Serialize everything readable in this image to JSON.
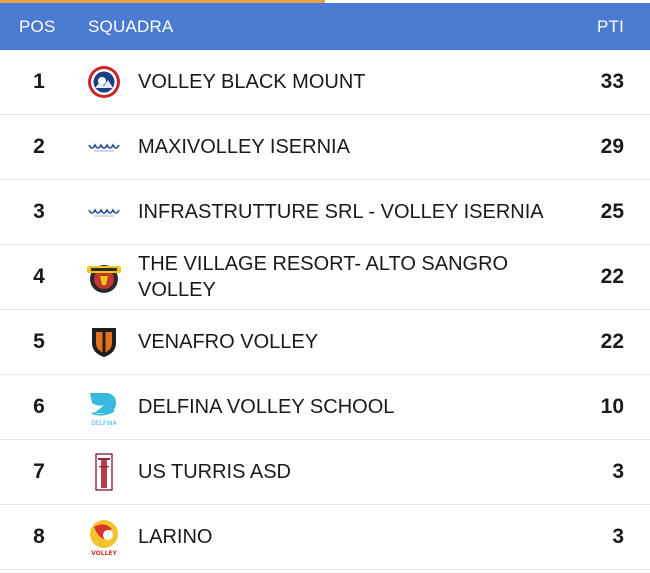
{
  "header": {
    "pos_label": "POS",
    "team_label": "SQUADRA",
    "pts_label": "PTI"
  },
  "standings": [
    {
      "pos": "1",
      "team": "VOLLEY BLACK MOUNT",
      "pts": "33",
      "logo": "volley-black-mount-logo"
    },
    {
      "pos": "2",
      "team": "MAXIVOLLEY ISERNIA",
      "pts": "29",
      "logo": "volley-isernia-logo"
    },
    {
      "pos": "3",
      "team": "INFRASTRUTTURE SRL - VOLLEY ISERNIA",
      "pts": "25",
      "logo": "volley-isernia-logo"
    },
    {
      "pos": "4",
      "team": "THE VILLAGE RESORT- ALTO SANGRO VOLLEY",
      "pts": "22",
      "logo": "alto-sangro-logo"
    },
    {
      "pos": "5",
      "team": "VENAFRO VOLLEY",
      "pts": "22",
      "logo": "venafro-shield-logo"
    },
    {
      "pos": "6",
      "team": "DELFINA VOLLEY SCHOOL",
      "pts": "10",
      "logo": "delfina-logo",
      "logo_text": "DELFINA"
    },
    {
      "pos": "7",
      "team": "US TURRIS ASD",
      "pts": "3",
      "logo": "turris-tower-logo"
    },
    {
      "pos": "8",
      "team": "LARINO",
      "pts": "3",
      "logo": "larino-logo",
      "logo_text": "VOLLEY"
    }
  ],
  "colors": {
    "header_bg": "#4a7bd0",
    "header_text": "#ffffff",
    "accent": "#e0a24a",
    "row_divider": "#e4e4e4"
  }
}
